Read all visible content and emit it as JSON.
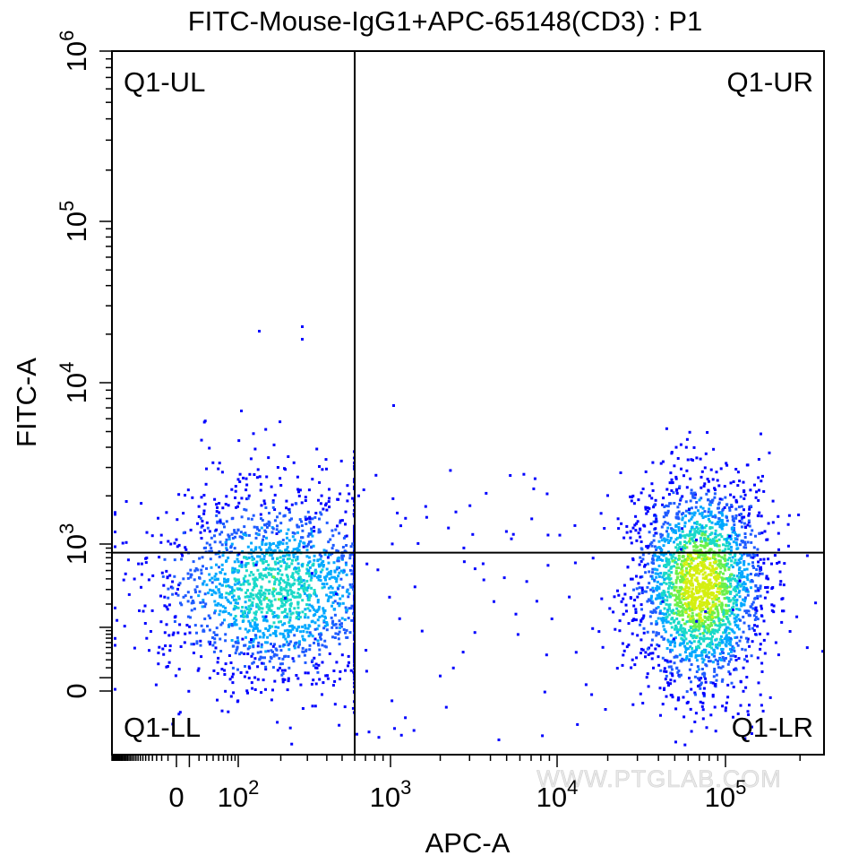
{
  "chart_data": {
    "type": "scatter",
    "subtype": "flow-cytometry-density-dot-plot",
    "title": "FITC-Mouse-IgG1+APC-65148(CD3) : P1",
    "xlabel": "APC-A",
    "ylabel": "FITC-A",
    "x_scale": "biexponential",
    "y_scale": "biexponential",
    "x_ticks": [
      {
        "value": 0,
        "label": "0",
        "exp": ""
      },
      {
        "value": 100,
        "label": "10",
        "exp": "2"
      },
      {
        "value": 1000,
        "label": "10",
        "exp": "3"
      },
      {
        "value": 10000,
        "label": "10",
        "exp": "4"
      },
      {
        "value": 100000,
        "label": "10",
        "exp": "5"
      }
    ],
    "y_ticks": [
      {
        "value": 0,
        "label": "0",
        "exp": ""
      },
      {
        "value": 1000,
        "label": "10",
        "exp": "3"
      },
      {
        "value": 10000,
        "label": "10",
        "exp": "4"
      },
      {
        "value": 100000,
        "label": "10",
        "exp": "5"
      },
      {
        "value": 1000000,
        "label": "10",
        "exp": "6"
      }
    ],
    "xlim": [
      -300,
      250000
    ],
    "ylim": [
      -300,
      1000000
    ],
    "gates": {
      "x": 600,
      "y": 800
    },
    "quadrants": [
      {
        "name": "Q1-UL",
        "position": "top-left"
      },
      {
        "name": "Q1-UR",
        "position": "top-right"
      },
      {
        "name": "Q1-LL",
        "position": "bottom-left"
      },
      {
        "name": "Q1-LR",
        "position": "bottom-right"
      }
    ],
    "populations": [
      {
        "name": "APC-negative",
        "x_center": 180,
        "y_center": 320,
        "x_spread": 0.55,
        "y_spread": 0.45,
        "density": "medium",
        "peak_color": "#22d3d8"
      },
      {
        "name": "APC-positive (CD3+)",
        "x_center": 70000,
        "y_center": 350,
        "x_spread": 0.22,
        "y_spread": 0.5,
        "density": "high",
        "peak_color": "#7fe620"
      }
    ],
    "density_colors": [
      "#0000ff",
      "#1f5bff",
      "#00a8ff",
      "#19d9c9",
      "#6cf04a",
      "#d4ef10"
    ],
    "watermark": "WWW.PTGLAB.COM"
  }
}
